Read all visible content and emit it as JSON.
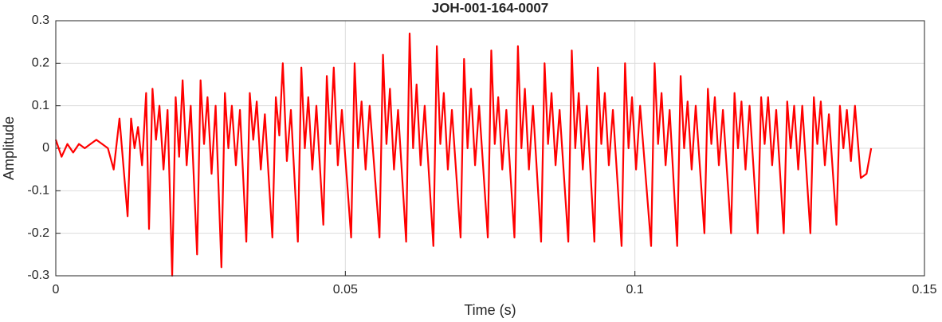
{
  "chart_data": {
    "type": "line",
    "title": "JOH-001-164-0007",
    "xlabel": "Time (s)",
    "ylabel": "Amplitude",
    "xlim": [
      0,
      0.15
    ],
    "xticks": [
      0,
      0.05,
      0.1,
      0.15
    ],
    "ylim": [
      -0.3,
      0.3
    ],
    "yticks": [
      -0.3,
      -0.2,
      -0.1,
      0,
      0.1,
      0.2,
      0.3
    ],
    "grid": true,
    "x": [
      0,
      0.001,
      0.002,
      0.003,
      0.004,
      0.005,
      0.006,
      0.007,
      0.008,
      0.009,
      0.01,
      0.011,
      0.0124,
      0.013,
      0.0136,
      0.0142,
      0.0149,
      0.0156,
      0.0161,
      0.0167,
      0.0173,
      0.0179,
      0.0186,
      0.0193,
      0.0201,
      0.0207,
      0.0213,
      0.0219,
      0.0226,
      0.0233,
      0.0244,
      0.025,
      0.0256,
      0.0262,
      0.0269,
      0.0276,
      0.0286,
      0.0292,
      0.0298,
      0.0304,
      0.0311,
      0.0318,
      0.0329,
      0.0335,
      0.0341,
      0.0347,
      0.0354,
      0.0361,
      0.0374,
      0.038,
      0.0386,
      0.0392,
      0.0399,
      0.0406,
      0.0418,
      0.0424,
      0.043,
      0.0436,
      0.0443,
      0.045,
      0.0462,
      0.0468,
      0.0474,
      0.048,
      0.0487,
      0.0494,
      0.051,
      0.0516,
      0.0522,
      0.0528,
      0.0535,
      0.0542,
      0.0559,
      0.0565,
      0.0571,
      0.0577,
      0.0584,
      0.0591,
      0.0605,
      0.0611,
      0.0617,
      0.0623,
      0.063,
      0.0637,
      0.0652,
      0.0658,
      0.0664,
      0.067,
      0.0677,
      0.0684,
      0.0699,
      0.0705,
      0.0711,
      0.0717,
      0.0724,
      0.0731,
      0.0746,
      0.0752,
      0.0758,
      0.0764,
      0.0771,
      0.0778,
      0.0792,
      0.0798,
      0.0804,
      0.081,
      0.0817,
      0.0824,
      0.0838,
      0.0844,
      0.085,
      0.0856,
      0.0863,
      0.087,
      0.0885,
      0.0891,
      0.0897,
      0.0903,
      0.091,
      0.0917,
      0.093,
      0.0936,
      0.0942,
      0.0948,
      0.0955,
      0.0962,
      0.0977,
      0.0983,
      0.0989,
      0.0995,
      0.1002,
      0.1009,
      0.1028,
      0.1034,
      0.104,
      0.1046,
      0.1053,
      0.106,
      0.1073,
      0.1079,
      0.1085,
      0.1091,
      0.1098,
      0.1105,
      0.112,
      0.1126,
      0.1132,
      0.1138,
      0.1145,
      0.1152,
      0.1166,
      0.1172,
      0.1178,
      0.1184,
      0.1191,
      0.1198,
      0.1212,
      0.1218,
      0.1224,
      0.123,
      0.1237,
      0.1244,
      0.1257,
      0.1263,
      0.1269,
      0.1275,
      0.1282,
      0.1289,
      0.1303,
      0.1309,
      0.1315,
      0.1321,
      0.1328,
      0.1335,
      0.1348,
      0.1354,
      0.136,
      0.1366,
      0.1373,
      0.138,
      0.139,
      0.14,
      0.1408
    ],
    "series": [
      {
        "color": "#ff0000",
        "values": [
          0.02,
          -0.02,
          0.01,
          -0.01,
          0.01,
          0.0,
          0.01,
          0.02,
          0.01,
          0.0,
          -0.05,
          0.07,
          -0.16,
          0.07,
          0.0,
          0.05,
          -0.04,
          0.13,
          -0.19,
          0.14,
          0.02,
          0.1,
          -0.05,
          0.09,
          -0.3,
          0.12,
          -0.02,
          0.16,
          -0.04,
          0.1,
          -0.25,
          0.16,
          0.01,
          0.12,
          -0.06,
          0.1,
          -0.28,
          0.13,
          0.0,
          0.1,
          -0.04,
          0.09,
          -0.22,
          0.13,
          0.02,
          0.11,
          -0.05,
          0.08,
          -0.21,
          0.12,
          0.03,
          0.2,
          -0.03,
          0.09,
          -0.22,
          0.19,
          0.0,
          0.12,
          -0.05,
          0.1,
          -0.18,
          0.17,
          0.01,
          0.19,
          -0.04,
          0.09,
          -0.21,
          0.2,
          0.0,
          0.11,
          -0.05,
          0.1,
          -0.21,
          0.22,
          0.01,
          0.14,
          -0.05,
          0.09,
          -0.22,
          0.27,
          0.0,
          0.15,
          -0.04,
          0.1,
          -0.23,
          0.24,
          0.01,
          0.13,
          -0.05,
          0.09,
          -0.21,
          0.21,
          0.0,
          0.14,
          -0.04,
          0.1,
          -0.21,
          0.23,
          0.01,
          0.12,
          -0.05,
          0.09,
          -0.21,
          0.24,
          0.0,
          0.14,
          -0.05,
          0.1,
          -0.22,
          0.2,
          0.01,
          0.13,
          -0.04,
          0.09,
          -0.22,
          0.23,
          0.0,
          0.13,
          -0.05,
          0.1,
          -0.22,
          0.19,
          0.01,
          0.13,
          -0.04,
          0.09,
          -0.23,
          0.2,
          0.0,
          0.12,
          -0.05,
          0.1,
          -0.23,
          0.2,
          0.01,
          0.13,
          -0.04,
          0.09,
          -0.23,
          0.17,
          0.0,
          0.11,
          -0.05,
          0.1,
          -0.2,
          0.14,
          0.01,
          0.12,
          -0.04,
          0.09,
          -0.2,
          0.13,
          0.0,
          0.11,
          -0.05,
          0.1,
          -0.2,
          0.12,
          0.01,
          0.12,
          -0.04,
          0.09,
          -0.2,
          0.11,
          0.0,
          0.1,
          -0.05,
          0.1,
          -0.2,
          0.12,
          0.01,
          0.11,
          -0.04,
          0.08,
          -0.18,
          0.1,
          0.0,
          0.09,
          -0.03,
          0.1,
          -0.07,
          -0.06,
          0.0
        ]
      }
    ]
  }
}
